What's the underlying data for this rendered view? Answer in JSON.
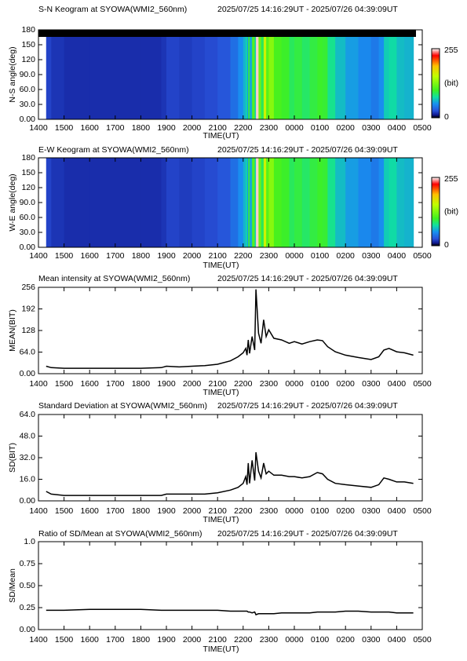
{
  "chart_data": [
    {
      "type": "keogram",
      "title": "S-N Keogram at SYOWA(WMI2_560nm)",
      "subtitle": "2025/07/25 14:16:29UT - 2025/07/26 04:39:09UT",
      "xlabel": "TIME(UT)",
      "ylabel": "N-S angle(deg)",
      "xlim": [
        14,
        29
      ],
      "xticks": [
        {
          "value": 14,
          "label": "1400"
        },
        {
          "value": 15,
          "label": "1500"
        },
        {
          "value": 16,
          "label": "1600"
        },
        {
          "value": 17,
          "label": "1700"
        },
        {
          "value": 18,
          "label": "1800"
        },
        {
          "value": 19,
          "label": "1900"
        },
        {
          "value": 20,
          "label": "2000"
        },
        {
          "value": 21,
          "label": "2100"
        },
        {
          "value": 22,
          "label": "2200"
        },
        {
          "value": 23,
          "label": "2300"
        },
        {
          "value": 24,
          "label": "0000"
        },
        {
          "value": 25,
          "label": "0100"
        },
        {
          "value": 26,
          "label": "0200"
        },
        {
          "value": 27,
          "label": "0300"
        },
        {
          "value": 28,
          "label": "0400"
        },
        {
          "value": 29,
          "label": "0500"
        }
      ],
      "ylim": [
        0,
        180
      ],
      "yticks": [
        {
          "value": 0,
          "label": "0.00"
        },
        {
          "value": 30,
          "label": "30.0"
        },
        {
          "value": 60,
          "label": "60.0"
        },
        {
          "value": 90,
          "label": "90.0"
        },
        120,
        150,
        180
      ],
      "clim": [
        0,
        255
      ],
      "colorbar_label": "(bit)"
    },
    {
      "type": "keogram",
      "title": "E-W Keogram at SYOWA(WMI2_560nm)",
      "subtitle": "2025/07/25 14:16:29UT - 2025/07/26 04:39:09UT",
      "xlabel": "TIME(UT)",
      "ylabel": "W-E angle(deg)",
      "xlim": [
        14,
        29
      ],
      "xticks": [
        {
          "value": 14,
          "label": "1400"
        },
        {
          "value": 15,
          "label": "1500"
        },
        {
          "value": 16,
          "label": "1600"
        },
        {
          "value": 17,
          "label": "1700"
        },
        {
          "value": 18,
          "label": "1800"
        },
        {
          "value": 19,
          "label": "1900"
        },
        {
          "value": 20,
          "label": "2000"
        },
        {
          "value": 21,
          "label": "2100"
        },
        {
          "value": 22,
          "label": "2200"
        },
        {
          "value": 23,
          "label": "2300"
        },
        {
          "value": 24,
          "label": "0000"
        },
        {
          "value": 25,
          "label": "0100"
        },
        {
          "value": 26,
          "label": "0200"
        },
        {
          "value": 27,
          "label": "0300"
        },
        {
          "value": 28,
          "label": "0400"
        },
        {
          "value": 29,
          "label": "0500"
        }
      ],
      "ylim": [
        0,
        180
      ],
      "yticks": [
        {
          "value": 0,
          "label": "0.00"
        },
        {
          "value": 30,
          "label": "30.0"
        },
        {
          "value": 60,
          "label": "60.0"
        },
        {
          "value": 90,
          "label": "90.0"
        },
        120,
        150,
        180
      ],
      "clim": [
        0,
        255
      ],
      "colorbar_label": "(bit)"
    },
    {
      "type": "line",
      "title": "Mean intensity at SYOWA(WMI2_560nm)",
      "subtitle": "2025/07/25 14:16:29UT - 2025/07/26 04:39:09UT",
      "xlabel": "TIME(UT)",
      "ylabel": "MEAN(BIT)",
      "xlim": [
        14,
        29
      ],
      "xticks": [
        {
          "value": 14,
          "label": "1400"
        },
        {
          "value": 15,
          "label": "1500"
        },
        {
          "value": 16,
          "label": "1600"
        },
        {
          "value": 17,
          "label": "1700"
        },
        {
          "value": 18,
          "label": "1800"
        },
        {
          "value": 19,
          "label": "1900"
        },
        {
          "value": 20,
          "label": "2000"
        },
        {
          "value": 21,
          "label": "2100"
        },
        {
          "value": 22,
          "label": "2200"
        },
        {
          "value": 23,
          "label": "2300"
        },
        {
          "value": 24,
          "label": "0000"
        },
        {
          "value": 25,
          "label": "0100"
        },
        {
          "value": 26,
          "label": "0200"
        },
        {
          "value": 27,
          "label": "0300"
        },
        {
          "value": 28,
          "label": "0400"
        },
        {
          "value": 29,
          "label": "0500"
        }
      ],
      "ylim": [
        0,
        256
      ],
      "yticks": [
        {
          "value": 0,
          "label": "0.00"
        },
        {
          "value": 64,
          "label": "64.0"
        },
        128,
        192,
        256
      ],
      "color": "#000000",
      "x": [
        14.3,
        14.5,
        15,
        16,
        17,
        18,
        18.8,
        19,
        19.5,
        20,
        20.5,
        21,
        21.5,
        21.8,
        22,
        22.1,
        22.15,
        22.2,
        22.25,
        22.35,
        22.45,
        22.5,
        22.6,
        22.7,
        22.8,
        22.9,
        23,
        23.2,
        23.5,
        23.8,
        24,
        24.3,
        24.6,
        24.9,
        25.1,
        25.3,
        25.6,
        26,
        26.5,
        27,
        27.3,
        27.5,
        27.7,
        28,
        28.3,
        28.65
      ],
      "values": [
        22,
        18,
        16,
        16,
        16,
        16,
        18,
        22,
        20,
        22,
        24,
        28,
        38,
        50,
        62,
        75,
        55,
        100,
        60,
        110,
        70,
        250,
        120,
        90,
        160,
        110,
        130,
        105,
        100,
        90,
        95,
        88,
        95,
        100,
        98,
        80,
        65,
        55,
        48,
        42,
        50,
        70,
        75,
        65,
        62,
        55
      ]
    },
    {
      "type": "line",
      "title": "Standard Deviation at SYOWA(WMI2_560nm)",
      "subtitle": "2025/07/25 14:16:29UT - 2025/07/26 04:39:09UT",
      "xlabel": "TIME(UT)",
      "ylabel": "SD(BIT)",
      "xlim": [
        14,
        29
      ],
      "xticks": [
        {
          "value": 14,
          "label": "1400"
        },
        {
          "value": 15,
          "label": "1500"
        },
        {
          "value": 16,
          "label": "1600"
        },
        {
          "value": 17,
          "label": "1700"
        },
        {
          "value": 18,
          "label": "1800"
        },
        {
          "value": 19,
          "label": "1900"
        },
        {
          "value": 20,
          "label": "2000"
        },
        {
          "value": 21,
          "label": "2100"
        },
        {
          "value": 22,
          "label": "2200"
        },
        {
          "value": 23,
          "label": "2300"
        },
        {
          "value": 24,
          "label": "0000"
        },
        {
          "value": 25,
          "label": "0100"
        },
        {
          "value": 26,
          "label": "0200"
        },
        {
          "value": 27,
          "label": "0300"
        },
        {
          "value": 28,
          "label": "0400"
        },
        {
          "value": 29,
          "label": "0500"
        }
      ],
      "ylim": [
        0,
        64
      ],
      "yticks": [
        {
          "value": 0,
          "label": "0.00"
        },
        {
          "value": 16,
          "label": "16.0"
        },
        {
          "value": 32,
          "label": "32.0"
        },
        {
          "value": 48,
          "label": "48.0"
        },
        {
          "value": 64,
          "label": "64.0"
        }
      ],
      "color": "#000000",
      "x": [
        14.3,
        14.5,
        15,
        16,
        17,
        18,
        18.8,
        19,
        19.5,
        20,
        20.5,
        21,
        21.5,
        21.8,
        22,
        22.1,
        22.15,
        22.2,
        22.25,
        22.35,
        22.45,
        22.5,
        22.6,
        22.7,
        22.8,
        22.9,
        23,
        23.2,
        23.5,
        23.8,
        24,
        24.3,
        24.6,
        24.9,
        25.1,
        25.3,
        25.6,
        26,
        26.5,
        27,
        27.3,
        27.5,
        27.7,
        28,
        28.3,
        28.65
      ],
      "values": [
        7,
        5,
        4,
        4,
        4,
        4,
        4,
        5,
        5,
        5,
        5,
        6,
        8,
        10,
        13,
        18,
        12,
        28,
        13,
        30,
        15,
        36,
        22,
        17,
        28,
        20,
        22,
        19,
        19,
        18,
        18,
        17,
        18,
        21,
        20,
        16,
        13,
        12,
        11,
        10,
        12,
        17,
        16,
        14,
        14,
        13
      ]
    },
    {
      "type": "line",
      "title": "Ratio of SD/Mean at SYOWA(WMI2_560nm)",
      "subtitle": "2025/07/25 14:16:29UT - 2025/07/26 04:39:09UT",
      "xlabel": "TIME(UT)",
      "ylabel": "SD/Mean",
      "xlim": [
        14,
        29
      ],
      "xticks": [
        {
          "value": 14,
          "label": "1400"
        },
        {
          "value": 15,
          "label": "1500"
        },
        {
          "value": 16,
          "label": "1600"
        },
        {
          "value": 17,
          "label": "1700"
        },
        {
          "value": 18,
          "label": "1800"
        },
        {
          "value": 19,
          "label": "1900"
        },
        {
          "value": 20,
          "label": "2000"
        },
        {
          "value": 21,
          "label": "2100"
        },
        {
          "value": 22,
          "label": "2200"
        },
        {
          "value": 23,
          "label": "2300"
        },
        {
          "value": 24,
          "label": "0000"
        },
        {
          "value": 25,
          "label": "0100"
        },
        {
          "value": 26,
          "label": "0200"
        },
        {
          "value": 27,
          "label": "0300"
        },
        {
          "value": 28,
          "label": "0400"
        },
        {
          "value": 29,
          "label": "0500"
        }
      ],
      "ylim": [
        0,
        1
      ],
      "yticks": [
        {
          "value": 0,
          "label": "0.00"
        },
        0.25,
        {
          "value": 0.5,
          "label": "0.50"
        },
        0.75,
        {
          "value": 1,
          "label": "1.0"
        }
      ],
      "color": "#000000",
      "x": [
        14.3,
        14.5,
        15,
        16,
        17,
        18,
        18.8,
        19,
        19.5,
        20,
        20.5,
        21,
        21.5,
        21.8,
        22,
        22.1,
        22.15,
        22.2,
        22.25,
        22.35,
        22.45,
        22.5,
        22.6,
        22.7,
        22.8,
        22.9,
        23,
        23.2,
        23.5,
        23.8,
        24,
        24.3,
        24.6,
        24.9,
        25.1,
        25.3,
        25.6,
        26,
        26.5,
        27,
        27.3,
        27.5,
        27.7,
        28,
        28.3,
        28.65
      ],
      "values": [
        0.22,
        0.22,
        0.22,
        0.23,
        0.23,
        0.23,
        0.22,
        0.22,
        0.22,
        0.22,
        0.22,
        0.22,
        0.21,
        0.21,
        0.21,
        0.21,
        0.21,
        0.2,
        0.2,
        0.19,
        0.2,
        0.17,
        0.18,
        0.18,
        0.18,
        0.18,
        0.18,
        0.18,
        0.19,
        0.19,
        0.19,
        0.19,
        0.19,
        0.2,
        0.2,
        0.2,
        0.2,
        0.21,
        0.21,
        0.2,
        0.2,
        0.2,
        0.2,
        0.19,
        0.19,
        0.19
      ]
    }
  ]
}
